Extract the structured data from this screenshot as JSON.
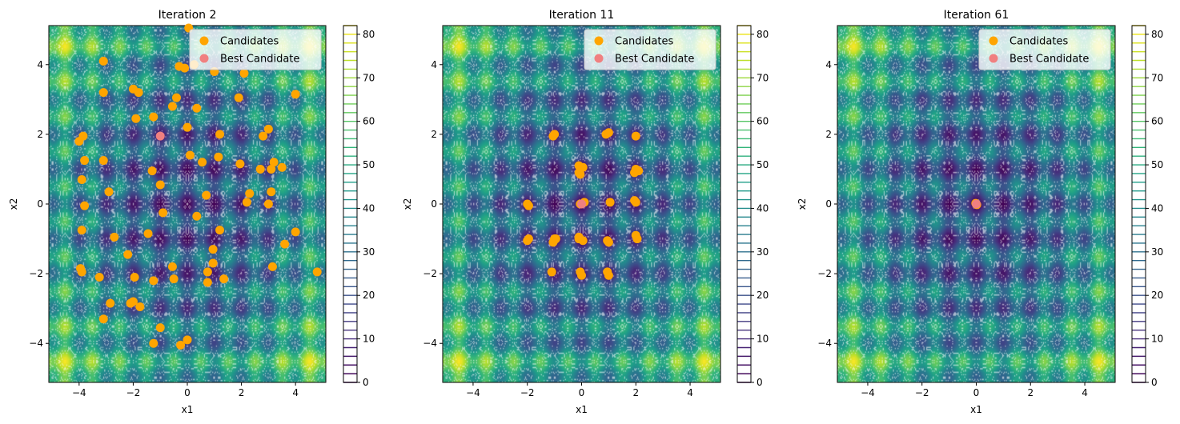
{
  "chart_data": [
    {
      "type": "scatter",
      "title": "Iteration 2",
      "xlabel": "x1",
      "ylabel": "x2",
      "xlim": [
        -5.12,
        5.12
      ],
      "ylim": [
        -5.12,
        5.12
      ],
      "xticks": [
        -4,
        -2,
        0,
        2,
        4
      ],
      "yticks": [
        -4,
        -2,
        0,
        2,
        4
      ],
      "background": "contourf of Rastrigin function with white contour lines",
      "legend": {
        "placement": "top-right",
        "entries": [
          "Candidates",
          "Best Candidate"
        ]
      },
      "series": [
        {
          "name": "Candidates",
          "color": "#ffa500",
          "x": [
            0.05,
            -3.1,
            -0.3,
            0.25,
            1.0,
            2.1,
            -0.1,
            -2.0,
            -1.8,
            -3.1,
            1.9,
            4.0,
            -0.55,
            -0.4,
            0.35,
            -1.25,
            -1.9,
            0.0,
            -4.0,
            -3.85,
            1.2,
            3.0,
            2.8,
            0.1,
            0.55,
            -3.8,
            -3.1,
            1.15,
            1.95,
            3.2,
            2.7,
            3.1,
            3.5,
            -1.3,
            -1.0,
            -3.9,
            -2.9,
            0.7,
            2.3,
            3.1,
            3.0,
            2.2,
            -3.8,
            -0.9,
            0.35,
            -3.9,
            -1.45,
            -2.7,
            4.0,
            1.2,
            0.95,
            3.6,
            0.95,
            -2.2,
            3.15,
            -3.95,
            -0.55,
            -3.25,
            -1.95,
            -0.5,
            1.35,
            0.75,
            -1.25,
            0.75,
            -2.0,
            -2.1,
            -1.75,
            -2.85,
            -3.1,
            -1.0,
            -1.25,
            0.0,
            -0.25,
            4.8,
            -3.9
          ],
          "y": [
            5.05,
            4.1,
            3.95,
            4.0,
            3.8,
            3.75,
            3.9,
            3.3,
            3.2,
            3.2,
            3.05,
            3.15,
            2.8,
            3.05,
            2.75,
            2.5,
            2.45,
            2.2,
            1.8,
            1.95,
            2.0,
            2.15,
            1.95,
            1.4,
            1.2,
            1.25,
            1.25,
            1.35,
            1.15,
            1.2,
            1.0,
            1.0,
            1.05,
            0.95,
            0.55,
            0.7,
            0.35,
            0.25,
            0.3,
            0.35,
            0.0,
            0.05,
            -0.05,
            -0.25,
            -0.35,
            -0.75,
            -0.85,
            -0.95,
            -0.8,
            -0.75,
            -1.3,
            -1.15,
            -1.7,
            -1.45,
            -1.8,
            -1.85,
            -1.8,
            -2.1,
            -2.1,
            -2.15,
            -2.15,
            -2.25,
            -2.2,
            -1.95,
            -2.8,
            -2.85,
            -2.95,
            -2.85,
            -3.3,
            -3.55,
            -4.0,
            -3.9,
            -4.05,
            -1.95,
            -1.95
          ]
        },
        {
          "name": "Best Candidate",
          "color": "#f08080",
          "x": [
            -1.0
          ],
          "y": [
            1.95
          ]
        }
      ],
      "colorbar": {
        "min": 0,
        "max": 82,
        "ticks": [
          0,
          10,
          20,
          30,
          40,
          50,
          60,
          70,
          80
        ],
        "colormap": "viridis"
      }
    },
    {
      "type": "scatter",
      "title": "Iteration 11",
      "xlabel": "x1",
      "ylabel": "x2",
      "xlim": [
        -5.12,
        5.12
      ],
      "ylim": [
        -5.12,
        5.12
      ],
      "xticks": [
        -4,
        -2,
        0,
        2,
        4
      ],
      "yticks": [
        -4,
        -2,
        0,
        2,
        4
      ],
      "background": "contourf of Rastrigin function with white contour lines",
      "legend": {
        "placement": "top-right",
        "entries": [
          "Candidates",
          "Best Candidate"
        ]
      },
      "series": [
        {
          "name": "Candidates",
          "color": "#ffa500",
          "x": [
            -1.05,
            -1.0,
            0.9,
            1.0,
            2.0,
            -0.1,
            -0.1,
            0.05,
            -0.05,
            2.0,
            1.95,
            2.1,
            -2.0,
            -1.95,
            -0.05,
            0.1,
            1.05,
            1.95,
            2.0,
            -2.0,
            -1.95,
            -1.0,
            -1.05,
            -0.95,
            -0.1,
            0.05,
            -0.1,
            0.95,
            1.0,
            2.05,
            2.0,
            -1.1,
            -0.05,
            0.0,
            1.0,
            0.95
          ],
          "y": [
            1.95,
            2.0,
            2.0,
            2.05,
            1.95,
            1.1,
            0.9,
            1.05,
            0.85,
            1.0,
            0.9,
            0.95,
            0.0,
            -0.05,
            0.0,
            0.05,
            0.05,
            0.1,
            0.05,
            -1.05,
            -1.0,
            -1.0,
            -1.1,
            -1.0,
            -1.0,
            -1.05,
            -0.95,
            -1.05,
            -1.1,
            -1.0,
            -0.9,
            -1.95,
            -1.95,
            -2.05,
            -2.05,
            -1.95
          ]
        },
        {
          "name": "Best Candidate",
          "color": "#f08080",
          "x": [
            0.0
          ],
          "y": [
            0.0
          ]
        }
      ],
      "colorbar": {
        "min": 0,
        "max": 82,
        "ticks": [
          0,
          10,
          20,
          30,
          40,
          50,
          60,
          70,
          80
        ],
        "colormap": "viridis"
      }
    },
    {
      "type": "scatter",
      "title": "Iteration 61",
      "xlabel": "x1",
      "ylabel": "x2",
      "xlim": [
        -5.12,
        5.12
      ],
      "ylim": [
        -5.12,
        5.12
      ],
      "xticks": [
        -4,
        -2,
        0,
        2,
        4
      ],
      "yticks": [
        -4,
        -2,
        0,
        2,
        4
      ],
      "background": "contourf of Rastrigin function with white contour lines",
      "legend": {
        "placement": "top-right",
        "entries": [
          "Candidates",
          "Best Candidate"
        ]
      },
      "series": [
        {
          "name": "Candidates",
          "color": "#ffa500",
          "x": [
            0.0,
            0.02,
            -0.02
          ],
          "y": [
            0.0,
            -0.02,
            0.02
          ]
        },
        {
          "name": "Best Candidate",
          "color": "#f08080",
          "x": [
            0.0
          ],
          "y": [
            0.0
          ]
        }
      ],
      "colorbar": {
        "min": 0,
        "max": 82,
        "ticks": [
          0,
          10,
          20,
          30,
          40,
          50,
          60,
          70,
          80
        ],
        "colormap": "viridis"
      }
    }
  ]
}
